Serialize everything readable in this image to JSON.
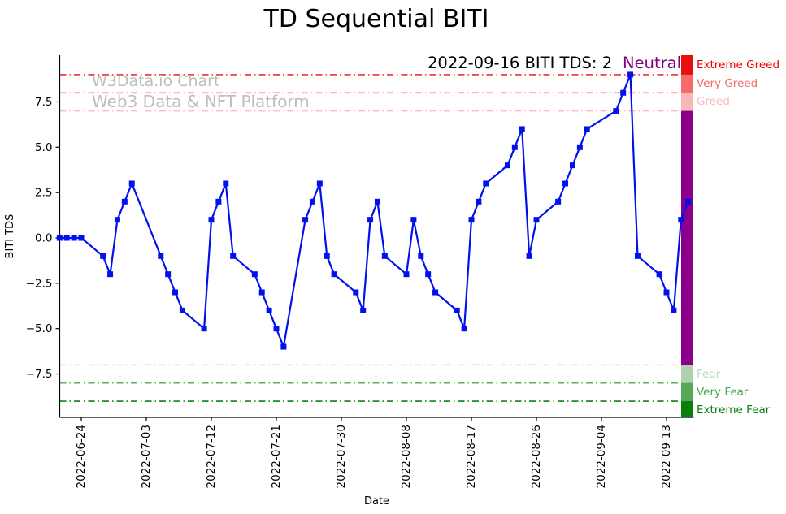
{
  "title": "TD Sequential BITI",
  "watermark": {
    "line1": "W3Data.io Chart",
    "line2": "Web3 Data & NFT Platform"
  },
  "annotation": {
    "text": "2022-09-16 BITI TDS: 2",
    "sentiment": "Neutral",
    "sentiment_color": "#800080"
  },
  "axes": {
    "x_label": "Date",
    "y_label": "BITI TDS",
    "x_ticks": [
      "2022-06-24",
      "2022-07-03",
      "2022-07-12",
      "2022-07-21",
      "2022-07-30",
      "2022-08-08",
      "2022-08-17",
      "2022-08-26",
      "2022-09-04",
      "2022-09-13"
    ],
    "y_ticks": [
      {
        "v": 7.5,
        "label": "7.5"
      },
      {
        "v": 5.0,
        "label": "5.0"
      },
      {
        "v": 2.5,
        "label": "2.5"
      },
      {
        "v": 0.0,
        "label": "0.0"
      },
      {
        "v": -2.5,
        "label": "−2.5"
      },
      {
        "v": -5.0,
        "label": "−5.0"
      },
      {
        "v": -7.5,
        "label": "−7.5"
      }
    ]
  },
  "thresholds": [
    {
      "value": 9,
      "line_color": "#f03030"
    },
    {
      "value": 8,
      "line_color": "#ff7a7a"
    },
    {
      "value": 7,
      "line_color": "#ffbcbc"
    },
    {
      "value": -7,
      "line_color": "#b9dcb9"
    },
    {
      "value": -8,
      "line_color": "#5ab05a"
    },
    {
      "value": -9,
      "line_color": "#0e830e"
    }
  ],
  "sentiment_labels": [
    {
      "label": "Extreme Greed",
      "color": "#f00000",
      "band_mid": 9.55
    },
    {
      "label": "Very Greed",
      "color": "#f66a6a",
      "band_mid": 8.5
    },
    {
      "label": "Greed",
      "color": "#f8bcbc",
      "band_mid": 7.5
    },
    {
      "label": "Fear",
      "color": "#b9d9b9",
      "band_mid": -7.5
    },
    {
      "label": "Very Fear",
      "color": "#4da64d",
      "band_mid": -8.5
    },
    {
      "label": "Extreme Fear",
      "color": "#0b800b",
      "band_mid": -9.5
    }
  ],
  "sentiment_bar": {
    "segments": [
      {
        "v1": 9,
        "v2": 10.1,
        "color": "#e80f0f"
      },
      {
        "v1": 8,
        "v2": 9,
        "color": "#f66a6a"
      },
      {
        "v1": 7,
        "v2": 8,
        "color": "#f8b6b6"
      },
      {
        "v1": -7,
        "v2": 7,
        "color": "#8b008b"
      },
      {
        "v1": -8,
        "v2": -7,
        "color": "#aed2ae"
      },
      {
        "v1": -9,
        "v2": -8,
        "color": "#57a957"
      },
      {
        "v1": -10.1,
        "v2": -9,
        "color": "#0a7f0a"
      }
    ]
  },
  "chart_data": {
    "type": "line",
    "title": "TD Sequential BITI",
    "xlabel": "Date",
    "ylabel": "BITI TDS",
    "line_color": "#0011ee",
    "marker": "square",
    "ylim": [
      -10.1,
      10.1
    ],
    "x": [
      "2022-06-21",
      "2022-06-22",
      "2022-06-23",
      "2022-06-24",
      "2022-06-27",
      "2022-06-28",
      "2022-06-29",
      "2022-06-30",
      "2022-07-01",
      "2022-07-05",
      "2022-07-06",
      "2022-07-07",
      "2022-07-08",
      "2022-07-11",
      "2022-07-12",
      "2022-07-13",
      "2022-07-14",
      "2022-07-15",
      "2022-07-18",
      "2022-07-19",
      "2022-07-20",
      "2022-07-21",
      "2022-07-22",
      "2022-07-25",
      "2022-07-26",
      "2022-07-27",
      "2022-07-28",
      "2022-07-29",
      "2022-08-01",
      "2022-08-02",
      "2022-08-03",
      "2022-08-04",
      "2022-08-05",
      "2022-08-08",
      "2022-08-09",
      "2022-08-10",
      "2022-08-11",
      "2022-08-12",
      "2022-08-15",
      "2022-08-16",
      "2022-08-17",
      "2022-08-18",
      "2022-08-19",
      "2022-08-22",
      "2022-08-23",
      "2022-08-24",
      "2022-08-25",
      "2022-08-26",
      "2022-08-29",
      "2022-08-30",
      "2022-08-31",
      "2022-09-01",
      "2022-09-02",
      "2022-09-06",
      "2022-09-07",
      "2022-09-08",
      "2022-09-09",
      "2022-09-12",
      "2022-09-13",
      "2022-09-14",
      "2022-09-15",
      "2022-09-16"
    ],
    "y": [
      0,
      0,
      0,
      0,
      -1,
      -2,
      1,
      2,
      3,
      -1,
      -2,
      -3,
      -4,
      -5,
      1,
      2,
      3,
      -1,
      -2,
      -3,
      -4,
      -5,
      -6,
      1,
      2,
      3,
      -1,
      -2,
      -3,
      -4,
      1,
      2,
      -1,
      -2,
      1,
      -1,
      -2,
      -3,
      -4,
      -5,
      1,
      2,
      3,
      4,
      5,
      6,
      -1,
      1,
      2,
      3,
      4,
      5,
      6,
      7,
      8,
      9,
      -1,
      -2,
      -3,
      -4,
      1,
      2
    ]
  }
}
